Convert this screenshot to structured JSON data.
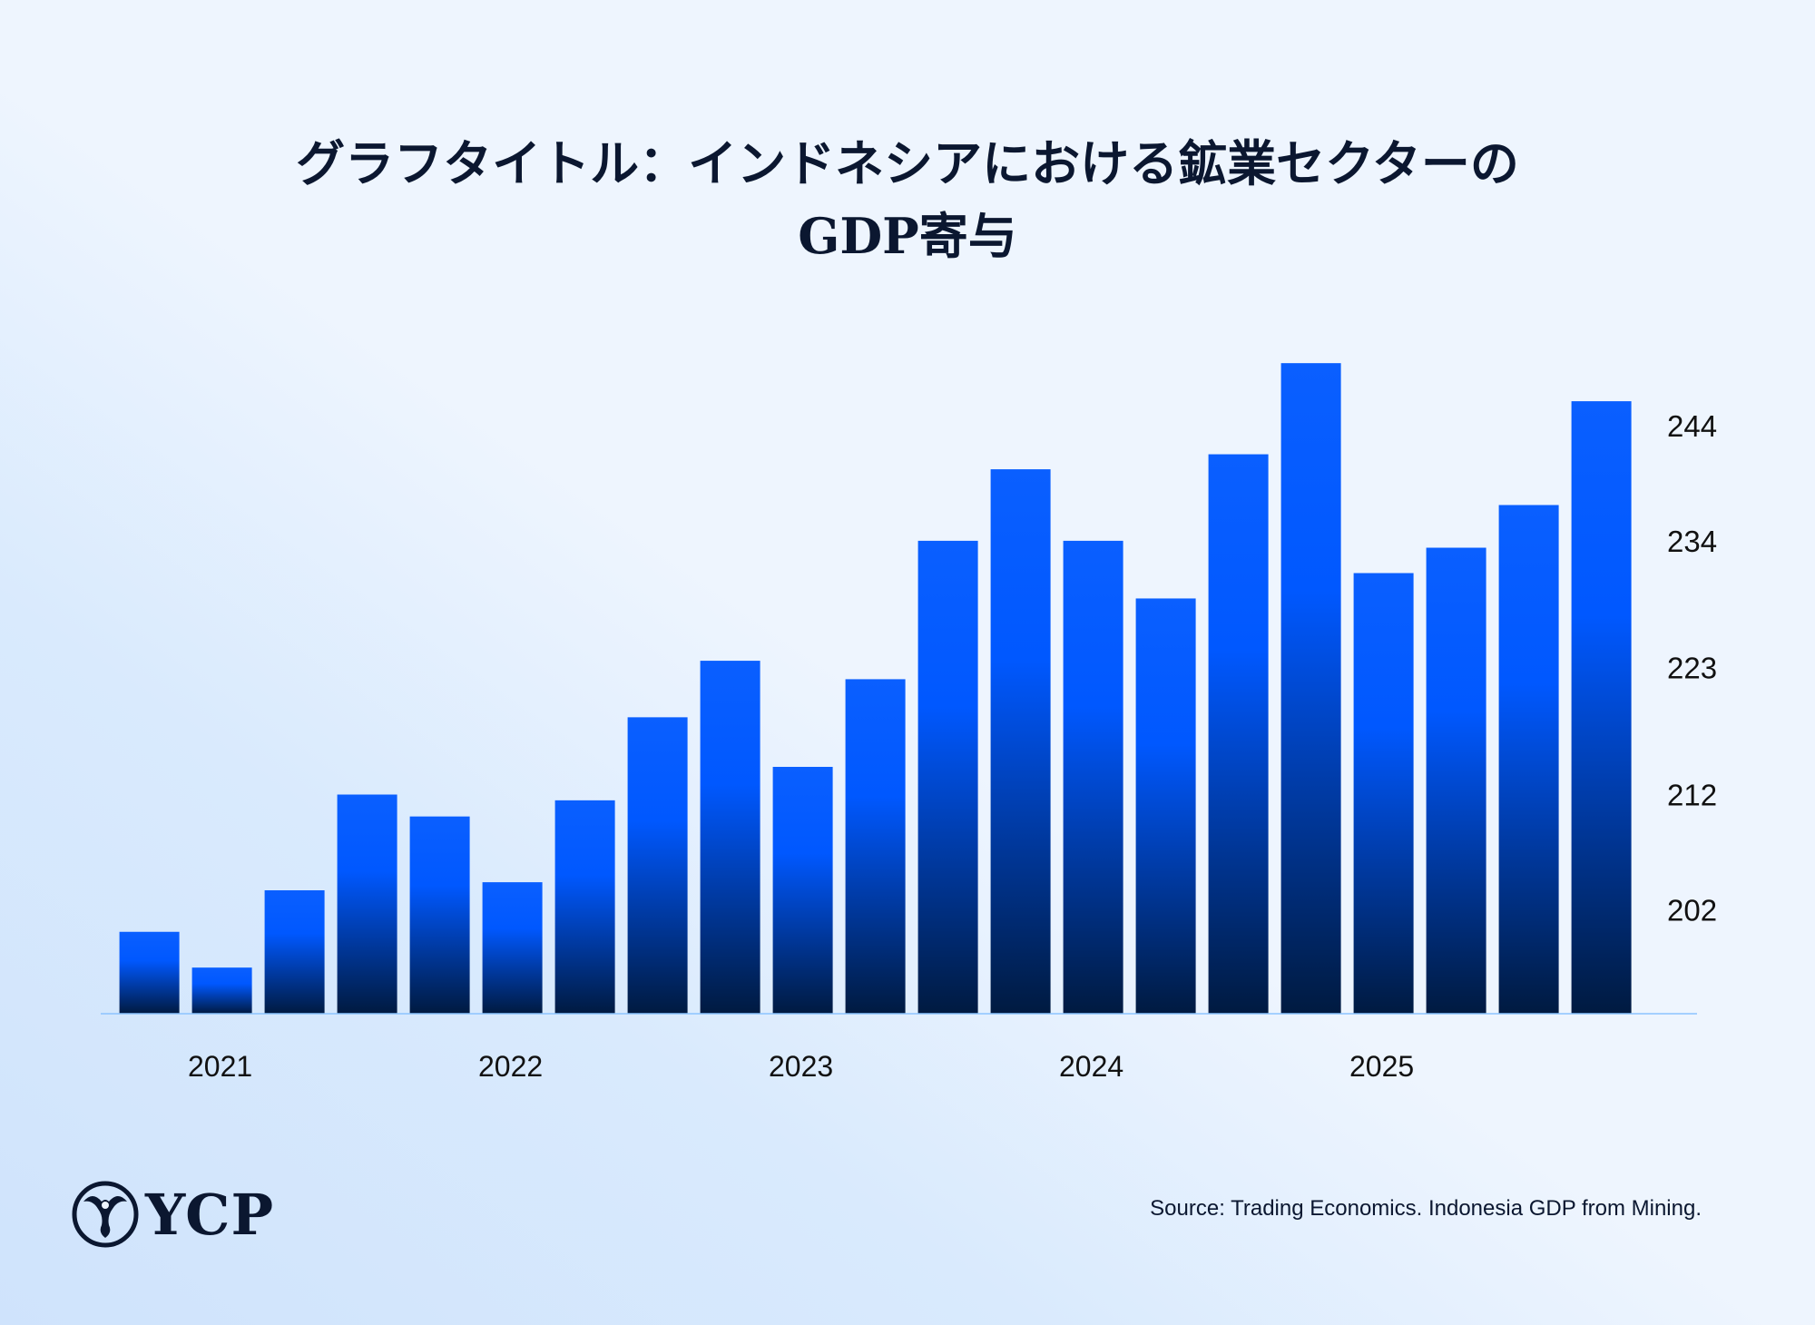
{
  "title_line1": "グラフタイトル：インドネシアにおける鉱業セクターの",
  "title_line2": "GDP寄与",
  "source": "Source: Trading Economics. Indonesia GDP from Mining.",
  "logo": {
    "text": "YCP",
    "icon": "ycp-emblem-icon"
  },
  "colors": {
    "bar_top": "#0a5fff",
    "bar_bottom": "#001a40",
    "axis": "#8cc4ff",
    "text": "#0b1730"
  },
  "chart_data": {
    "type": "bar",
    "title": "グラフタイトル：インドネシアにおける鉱業セクターのGDP寄与",
    "values": [
      200.1,
      197.0,
      203.7,
      212.0,
      210.1,
      204.4,
      211.5,
      218.7,
      223.6,
      214.4,
      222.0,
      234.0,
      240.2,
      234.0,
      229.0,
      241.5,
      249.4,
      231.2,
      233.4,
      237.1,
      246.1
    ],
    "x_tick_labels": [
      {
        "bar_index": 1,
        "label": "2021"
      },
      {
        "bar_index": 5,
        "label": "2022"
      },
      {
        "bar_index": 9,
        "label": "2023"
      },
      {
        "bar_index": 13,
        "label": "2024"
      },
      {
        "bar_index": 17,
        "label": "2025"
      }
    ],
    "y_ticks": [
      202,
      212,
      223,
      234,
      244
    ],
    "y_axis_position": "right",
    "ylim": [
      193,
      252
    ],
    "grid": false,
    "legend": "none"
  }
}
